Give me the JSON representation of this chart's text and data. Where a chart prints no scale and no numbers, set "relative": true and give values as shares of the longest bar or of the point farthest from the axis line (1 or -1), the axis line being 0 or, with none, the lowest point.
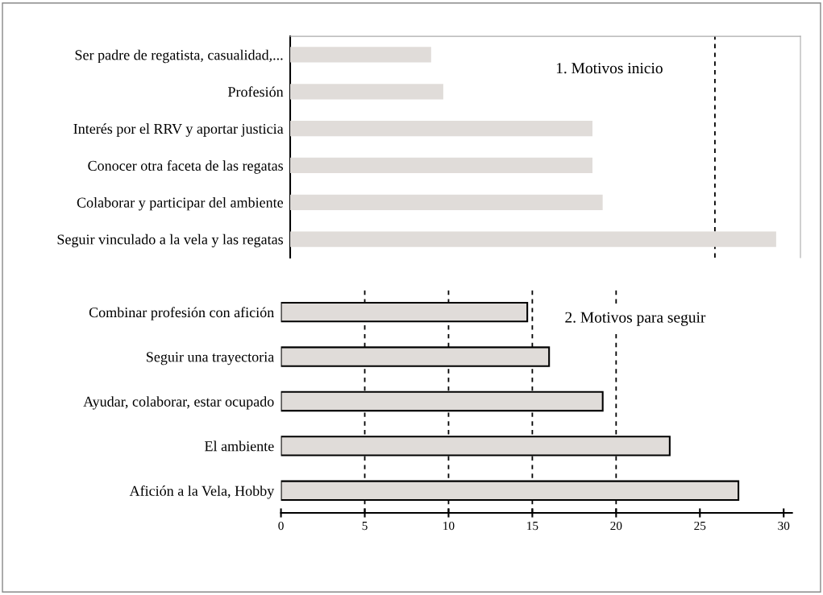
{
  "chart_data": [
    {
      "type": "bar",
      "orientation": "horizontal",
      "title": "1. Motivos inicio",
      "categories": [
        "Ser padre de regatista, casualidad,...",
        "Profesión",
        "Interés por el RRV y aportar justicia",
        "Conocer otra faceta de las regatas",
        "Colaborar y participar del ambiente",
        "Seguir vinculado a la vela y las regatas"
      ],
      "values": [
        0.29,
        0.315,
        0.622,
        0.622,
        0.643,
        1
      ],
      "color": "#e0dcd9",
      "relative": true,
      "ref_lines": [
        {
          "axis": "x",
          "value": 0.874,
          "label": null,
          "color": "#000000",
          "line_style": "dashed"
        }
      ]
    },
    {
      "type": "bar",
      "orientation": "horizontal",
      "title": "2. Motivos para seguir",
      "categories": [
        "Combinar profesión con afición",
        "Seguir una trayectoria",
        "Ayudar, colaborar, estar ocupado",
        "El ambiente",
        "Afición a la Vela, Hobby"
      ],
      "values": [
        14.7,
        16.0,
        19.2,
        23.2,
        27.3
      ],
      "color": "#e0dcd9",
      "xlim": [
        0,
        30.5
      ],
      "xticks": [
        0,
        5,
        10,
        15,
        20,
        25,
        30
      ],
      "ref_lines": [
        {
          "axis": "x",
          "value": 5,
          "label": null,
          "color": "#000000",
          "line_style": "dashed"
        },
        {
          "axis": "x",
          "value": 10,
          "label": null,
          "color": "#000000",
          "line_style": "dashed"
        },
        {
          "axis": "x",
          "value": 15,
          "label": null,
          "color": "#000000",
          "line_style": "dashed"
        },
        {
          "axis": "x",
          "value": 20,
          "label": null,
          "color": "#000000",
          "line_style": "dashed"
        }
      ]
    }
  ]
}
